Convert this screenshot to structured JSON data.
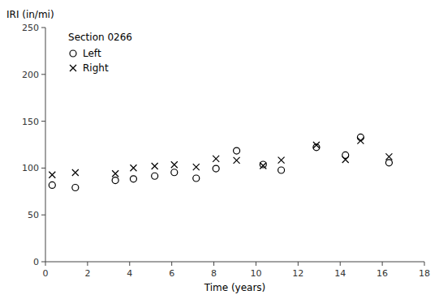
{
  "chart_data": {
    "type": "scatter",
    "xlabel": "Time (years)",
    "ylabel": "IRI (in/mi)",
    "legend_title": "Section 0266",
    "legend": "top-left",
    "grid": false,
    "xlim": [
      0,
      18
    ],
    "ylim": [
      0,
      250
    ],
    "xticks": [
      0,
      2,
      4,
      6,
      8,
      10,
      12,
      14,
      16,
      18
    ],
    "yticks": [
      0,
      50,
      100,
      150,
      200,
      250
    ],
    "series": [
      {
        "name": "Left",
        "color": "#000000",
        "marker": "circle",
        "x": [
          0.32,
          1.42,
          3.32,
          4.18,
          5.19,
          6.12,
          7.16,
          8.1,
          9.08,
          10.34,
          11.2,
          12.87,
          14.25,
          14.97,
          16.32
        ],
        "values": [
          81.77,
          79.17,
          86.91,
          88.38,
          91.48,
          95.37,
          89.08,
          99.45,
          118.45,
          103.8,
          97.73,
          122.12,
          113.78,
          132.88,
          105.73
        ]
      },
      {
        "name": "Right",
        "color": "#000000",
        "marker": "cross",
        "x": [
          0.32,
          1.42,
          3.32,
          4.18,
          5.19,
          6.12,
          7.16,
          8.1,
          9.08,
          10.34,
          11.2,
          12.87,
          14.25,
          14.97,
          16.32
        ],
        "values": [
          92.74,
          95.16,
          94.06,
          100.12,
          102.08,
          103.61,
          101.06,
          110.01,
          108.27,
          102.5,
          108.52,
          124.54,
          108.96,
          129.19,
          112.19
        ]
      }
    ]
  }
}
